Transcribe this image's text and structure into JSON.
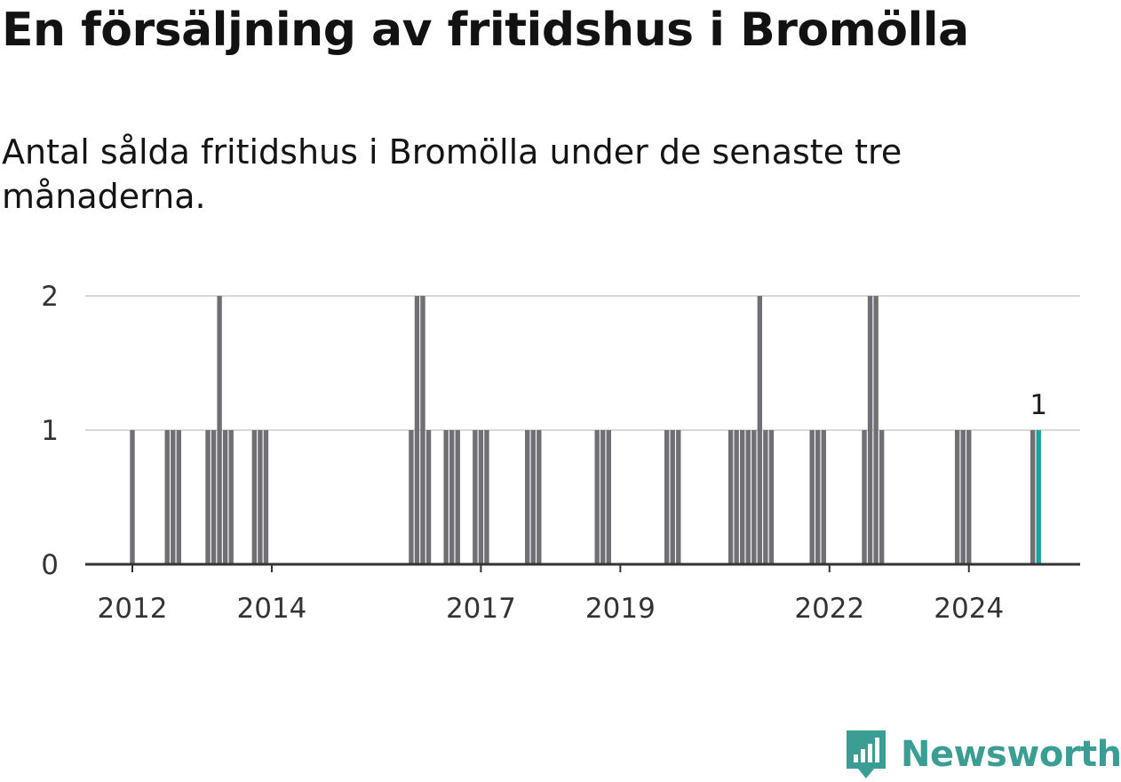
{
  "header": {
    "title": "En försäljning av fritidshus i Bromölla",
    "subtitle": "Antal sålda fritidshus i Bromölla under de senaste tre månaderna."
  },
  "chart_data": {
    "type": "bar",
    "title": "En försäljning av fritidshus i Bromölla",
    "subtitle": "Antal sålda fritidshus i Bromölla under de senaste tre månaderna.",
    "xlabel": "",
    "ylabel": "",
    "ylim": [
      0,
      2
    ],
    "yticks": [
      0,
      1,
      2
    ],
    "x_tick_labels": [
      "2012",
      "2014",
      "2017",
      "2019",
      "2022",
      "2024"
    ],
    "grid": true,
    "legend": "none",
    "x_start": "2012-01",
    "x_end": "2025-01",
    "months": [
      "2012-01",
      "2012-07",
      "2012-08",
      "2012-09",
      "2013-02",
      "2013-03",
      "2013-04",
      "2013-05",
      "2013-06",
      "2013-10",
      "2013-11",
      "2013-12",
      "2016-01",
      "2016-02",
      "2016-03",
      "2016-04",
      "2016-07",
      "2016-08",
      "2016-09",
      "2016-12",
      "2017-01",
      "2017-02",
      "2017-09",
      "2017-10",
      "2017-11",
      "2018-09",
      "2018-10",
      "2018-11",
      "2019-09",
      "2019-10",
      "2019-11",
      "2020-08",
      "2020-09",
      "2020-10",
      "2020-11",
      "2020-12",
      "2021-01",
      "2021-02",
      "2021-03",
      "2021-10",
      "2021-11",
      "2021-12",
      "2022-07",
      "2022-08",
      "2022-09",
      "2022-10",
      "2023-11",
      "2023-12",
      "2024-01",
      "2024-12",
      "2025-01"
    ],
    "values": [
      1,
      1,
      1,
      1,
      1,
      1,
      2,
      1,
      1,
      1,
      1,
      1,
      1,
      2,
      2,
      1,
      1,
      1,
      1,
      1,
      1,
      1,
      1,
      1,
      1,
      1,
      1,
      1,
      1,
      1,
      1,
      1,
      1,
      1,
      1,
      1,
      2,
      1,
      1,
      1,
      1,
      1,
      1,
      2,
      2,
      1,
      1,
      1,
      1,
      1,
      1
    ],
    "highlight": {
      "month": "2025-01",
      "value": 1,
      "label": "1",
      "color": "#1aa59a"
    },
    "bar_color": "#6f6f74"
  },
  "branding": {
    "logo_text": "Newsworthy",
    "logo_icon": "newsworthy-chart-icon",
    "logo_color": "#3a9e94"
  }
}
